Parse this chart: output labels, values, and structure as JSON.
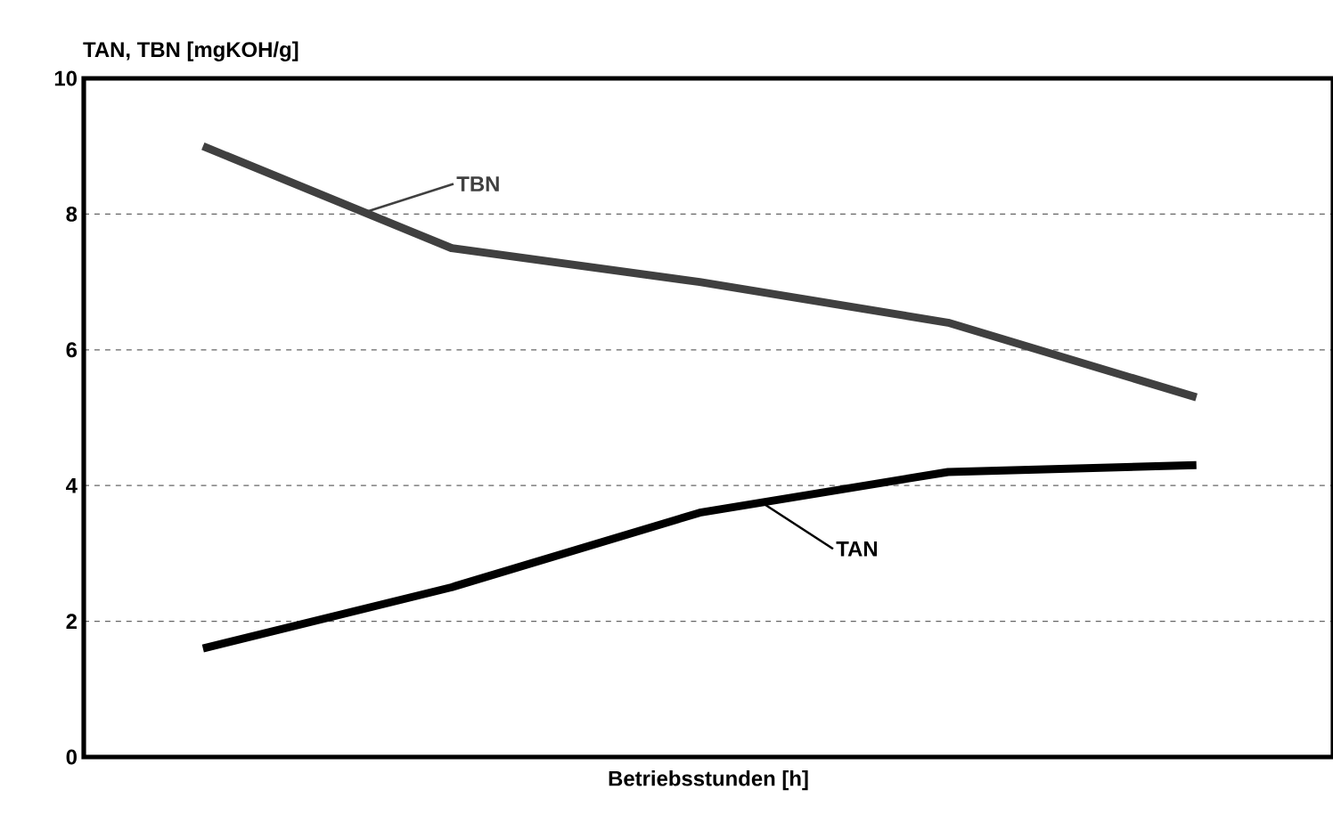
{
  "chart_data": {
    "type": "line",
    "ylabel": "TAN, TBN [mgKOH/g]",
    "xlabel": "Betriebsstunden [h]",
    "categories": [
      null,
      null,
      null,
      null,
      null
    ],
    "series": [
      {
        "name": "TBN",
        "color": "#404040",
        "values": [
          9.0,
          7.5,
          7.0,
          6.4,
          5.3
        ]
      },
      {
        "name": "TAN",
        "color": "#000000",
        "values": [
          1.6,
          2.5,
          3.6,
          4.2,
          4.3
        ]
      }
    ],
    "ylim": [
      0,
      10
    ],
    "yticks": [
      0,
      2,
      4,
      6,
      8,
      10
    ],
    "grid": "y",
    "marker": "none",
    "line_style": "solid"
  }
}
